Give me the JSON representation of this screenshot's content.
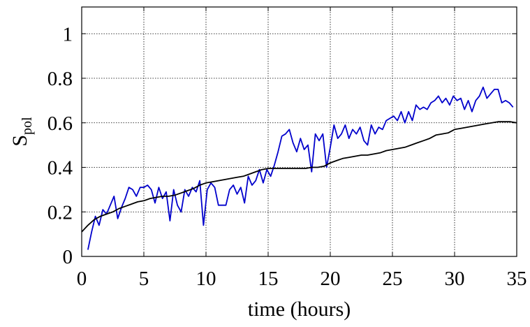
{
  "chart_data": {
    "type": "line",
    "title": "",
    "xlabel": "time (hours)",
    "ylabel_main": "S",
    "ylabel_sub": "pol",
    "xlim": [
      0,
      35
    ],
    "ylim": [
      0,
      1.12
    ],
    "xticks": [
      0,
      5,
      10,
      15,
      20,
      25,
      30,
      35
    ],
    "xtick_labels": [
      "0",
      "5",
      "10",
      "15",
      "20",
      "25",
      "30",
      "35"
    ],
    "yticks": [
      0,
      0.2,
      0.4,
      0.6,
      0.8,
      1
    ],
    "ytick_labels": [
      "0",
      "0.2",
      "0.4",
      "0.6",
      "0.8",
      "1"
    ],
    "grid": true,
    "grid_style": "dotted",
    "legend": "none",
    "series": [
      {
        "color": "#0000cc",
        "x": [
          0.5,
          0.8,
          1.1,
          1.4,
          1.7,
          2.0,
          2.3,
          2.6,
          2.9,
          3.2,
          3.5,
          3.8,
          4.1,
          4.4,
          4.7,
          5.0,
          5.3,
          5.6,
          5.9,
          6.2,
          6.5,
          6.8,
          7.1,
          7.4,
          7.7,
          8.0,
          8.3,
          8.6,
          8.9,
          9.2,
          9.5,
          9.8,
          10.1,
          10.4,
          10.7,
          11.0,
          11.3,
          11.6,
          11.9,
          12.2,
          12.5,
          12.8,
          13.1,
          13.4,
          13.7,
          14.0,
          14.3,
          14.6,
          14.9,
          15.2,
          15.5,
          15.8,
          16.1,
          16.4,
          16.7,
          17.0,
          17.3,
          17.6,
          17.9,
          18.2,
          18.5,
          18.8,
          19.1,
          19.4,
          19.7,
          20.0,
          20.3,
          20.6,
          20.9,
          21.2,
          21.5,
          21.8,
          22.1,
          22.4,
          22.7,
          23.0,
          23.3,
          23.6,
          23.9,
          24.2,
          24.5,
          24.8,
          25.1,
          25.4,
          25.7,
          26.0,
          26.3,
          26.6,
          26.9,
          27.2,
          27.5,
          27.8,
          28.1,
          28.4,
          28.7,
          29.0,
          29.3,
          29.6,
          29.9,
          30.2,
          30.5,
          30.8,
          31.1,
          31.4,
          31.7,
          32.0,
          32.3,
          32.6,
          32.9,
          33.2,
          33.5,
          33.8,
          34.1,
          34.4,
          34.7
        ],
        "y": [
          0.03,
          0.11,
          0.18,
          0.14,
          0.21,
          0.19,
          0.23,
          0.27,
          0.17,
          0.22,
          0.26,
          0.31,
          0.3,
          0.27,
          0.31,
          0.31,
          0.32,
          0.3,
          0.24,
          0.31,
          0.26,
          0.29,
          0.16,
          0.3,
          0.23,
          0.2,
          0.3,
          0.27,
          0.31,
          0.29,
          0.34,
          0.14,
          0.3,
          0.33,
          0.31,
          0.23,
          0.23,
          0.23,
          0.3,
          0.32,
          0.28,
          0.31,
          0.24,
          0.36,
          0.32,
          0.34,
          0.39,
          0.33,
          0.39,
          0.36,
          0.41,
          0.47,
          0.54,
          0.55,
          0.57,
          0.51,
          0.47,
          0.53,
          0.48,
          0.5,
          0.38,
          0.55,
          0.52,
          0.55,
          0.4,
          0.49,
          0.59,
          0.53,
          0.55,
          0.59,
          0.53,
          0.57,
          0.55,
          0.58,
          0.52,
          0.5,
          0.59,
          0.55,
          0.58,
          0.57,
          0.61,
          0.62,
          0.63,
          0.61,
          0.65,
          0.6,
          0.65,
          0.61,
          0.68,
          0.66,
          0.67,
          0.66,
          0.69,
          0.7,
          0.72,
          0.69,
          0.71,
          0.68,
          0.72,
          0.7,
          0.71,
          0.66,
          0.7,
          0.65,
          0.7,
          0.72,
          0.76,
          0.71,
          0.73,
          0.75,
          0.75,
          0.69,
          0.7,
          0.69,
          0.67
        ]
      },
      {
        "color": "#000000",
        "x": [
          0,
          0.5,
          1,
          1.5,
          2,
          2.5,
          3,
          3.5,
          4,
          4.5,
          5,
          5.5,
          6,
          6.5,
          7,
          7.5,
          8,
          8.5,
          9,
          9.5,
          10,
          10.5,
          11,
          11.5,
          12,
          12.5,
          13,
          13.5,
          14,
          14.5,
          15,
          15.5,
          16,
          16.5,
          17,
          17.5,
          18,
          18.5,
          19,
          19.5,
          20,
          20.5,
          21,
          21.5,
          22,
          22.5,
          23,
          23.5,
          24,
          24.5,
          25,
          25.5,
          26,
          26.5,
          27,
          27.5,
          28,
          28.5,
          29,
          29.5,
          30,
          30.5,
          31,
          31.5,
          32,
          32.5,
          33,
          33.5,
          34,
          34.5,
          35
        ],
        "y": [
          0.11,
          0.14,
          0.165,
          0.18,
          0.19,
          0.2,
          0.215,
          0.225,
          0.235,
          0.245,
          0.25,
          0.26,
          0.265,
          0.27,
          0.27,
          0.275,
          0.285,
          0.295,
          0.305,
          0.32,
          0.33,
          0.335,
          0.34,
          0.345,
          0.35,
          0.355,
          0.36,
          0.37,
          0.38,
          0.39,
          0.395,
          0.395,
          0.395,
          0.395,
          0.395,
          0.395,
          0.395,
          0.4,
          0.4,
          0.405,
          0.42,
          0.43,
          0.44,
          0.445,
          0.45,
          0.455,
          0.455,
          0.46,
          0.465,
          0.475,
          0.48,
          0.485,
          0.49,
          0.5,
          0.51,
          0.52,
          0.53,
          0.545,
          0.55,
          0.555,
          0.57,
          0.575,
          0.58,
          0.585,
          0.59,
          0.595,
          0.6,
          0.605,
          0.605,
          0.605,
          0.6
        ]
      }
    ]
  }
}
